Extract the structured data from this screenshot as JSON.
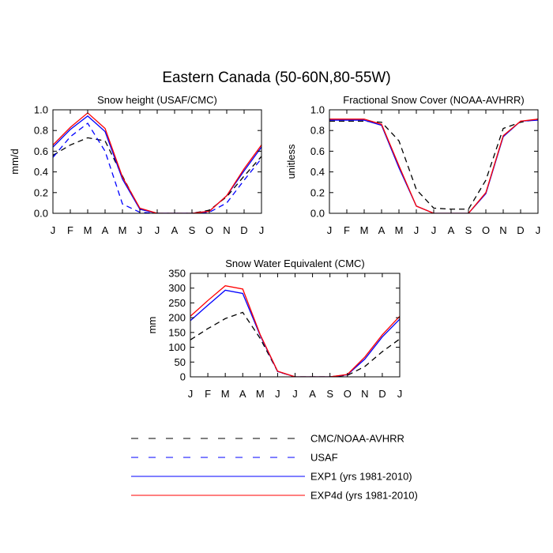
{
  "figure": {
    "title": "Eastern Canada (50-60N,80-55W)"
  },
  "legend": {
    "entries": [
      {
        "label": "CMC/NOAA-AVHRR",
        "color": "#000000",
        "dash": "dash"
      },
      {
        "label": "USAF",
        "color": "#0000ff",
        "dash": "dash"
      },
      {
        "label": "EXP1 (yrs 1981-2010)",
        "color": "#0000ff",
        "dash": "solid"
      },
      {
        "label": "EXP4d (yrs 1981-2010)",
        "color": "#ff0000",
        "dash": "solid"
      }
    ]
  },
  "chart_data": [
    {
      "type": "line",
      "title": "Snow height (USAF/CMC)",
      "ylabel": "mm/d",
      "xlabel": "",
      "categories": [
        "J",
        "F",
        "M",
        "A",
        "M",
        "J",
        "J",
        "A",
        "S",
        "O",
        "N",
        "D",
        "J"
      ],
      "ylim": [
        0,
        1.0
      ],
      "yticks": [
        0.0,
        0.2,
        0.4,
        0.6,
        0.8,
        1.0
      ],
      "ytick_labels": [
        "0.0",
        "0.2",
        "0.4",
        "0.6",
        "0.8",
        "1.0"
      ],
      "series": [
        {
          "name": "CMC/NOAA-AVHRR",
          "color": "#000000",
          "dash": "dash",
          "values": [
            0.56,
            0.66,
            0.73,
            0.7,
            0.36,
            0.04,
            0.0,
            0.0,
            0.0,
            0.03,
            0.16,
            0.36,
            0.55
          ]
        },
        {
          "name": "USAF",
          "color": "#0000ff",
          "dash": "dash",
          "values": [
            0.54,
            0.74,
            0.87,
            0.6,
            0.09,
            0.01,
            0.0,
            0.0,
            0.0,
            0.01,
            0.1,
            0.32,
            0.53
          ]
        },
        {
          "name": "EXP1 (yrs 1981-2010)",
          "color": "#0000ff",
          "dash": "solid",
          "values": [
            0.64,
            0.81,
            0.94,
            0.79,
            0.33,
            0.04,
            0.0,
            0.0,
            0.0,
            0.02,
            0.17,
            0.41,
            0.64
          ]
        },
        {
          "name": "EXP4d (yrs 1981-2010)",
          "color": "#ff0000",
          "dash": "solid",
          "values": [
            0.66,
            0.83,
            0.97,
            0.82,
            0.35,
            0.05,
            0.0,
            0.0,
            0.0,
            0.02,
            0.17,
            0.43,
            0.66
          ]
        }
      ]
    },
    {
      "type": "line",
      "title": "Fractional Snow Cover (NOAA-AVHRR)",
      "ylabel": "unitless",
      "xlabel": "",
      "categories": [
        "J",
        "F",
        "M",
        "A",
        "M",
        "J",
        "J",
        "A",
        "S",
        "O",
        "N",
        "D",
        "J"
      ],
      "ylim": [
        0,
        1.0
      ],
      "yticks": [
        0.0,
        0.2,
        0.4,
        0.6,
        0.8,
        1.0
      ],
      "ytick_labels": [
        "0.0",
        "0.2",
        "0.4",
        "0.6",
        "0.8",
        "1.0"
      ],
      "series": [
        {
          "name": "CMC/NOAA-AVHRR",
          "color": "#000000",
          "dash": "dash",
          "values": [
            0.89,
            0.89,
            0.89,
            0.88,
            0.7,
            0.23,
            0.05,
            0.04,
            0.04,
            0.32,
            0.82,
            0.88,
            0.91
          ]
        },
        {
          "name": "EXP1 (yrs 1981-2010)",
          "color": "#0000ff",
          "dash": "solid",
          "values": [
            0.9,
            0.9,
            0.9,
            0.85,
            0.44,
            0.07,
            0.0,
            0.0,
            0.0,
            0.19,
            0.74,
            0.89,
            0.9
          ]
        },
        {
          "name": "EXP4d (yrs 1981-2010)",
          "color": "#ff0000",
          "dash": "solid",
          "values": [
            0.91,
            0.91,
            0.91,
            0.86,
            0.46,
            0.07,
            0.0,
            0.0,
            0.0,
            0.2,
            0.75,
            0.89,
            0.91
          ]
        }
      ]
    },
    {
      "type": "line",
      "title": "Snow Water Equivalent (CMC)",
      "ylabel": "mm",
      "xlabel": "",
      "categories": [
        "J",
        "F",
        "M",
        "A",
        "M",
        "J",
        "J",
        "A",
        "S",
        "O",
        "N",
        "D",
        "J"
      ],
      "ylim": [
        0,
        350
      ],
      "yticks": [
        0,
        50,
        100,
        150,
        200,
        250,
        300,
        350
      ],
      "ytick_labels": [
        "0",
        "50",
        "100",
        "150",
        "200",
        "250",
        "300",
        "350"
      ],
      "series": [
        {
          "name": "CMC/NOAA-AVHRR",
          "color": "#000000",
          "dash": "dash",
          "values": [
            125,
            163,
            197,
            218,
            130,
            18,
            0,
            0,
            0,
            5,
            35,
            85,
            128
          ]
        },
        {
          "name": "EXP1 (yrs 1981-2010)",
          "color": "#0000ff",
          "dash": "solid",
          "values": [
            190,
            242,
            293,
            282,
            140,
            18,
            0,
            0,
            0,
            7,
            60,
            135,
            195
          ]
        },
        {
          "name": "EXP4d (yrs 1981-2010)",
          "color": "#ff0000",
          "dash": "solid",
          "values": [
            205,
            258,
            308,
            297,
            143,
            19,
            0,
            0,
            0,
            8,
            67,
            142,
            205
          ]
        }
      ]
    }
  ]
}
